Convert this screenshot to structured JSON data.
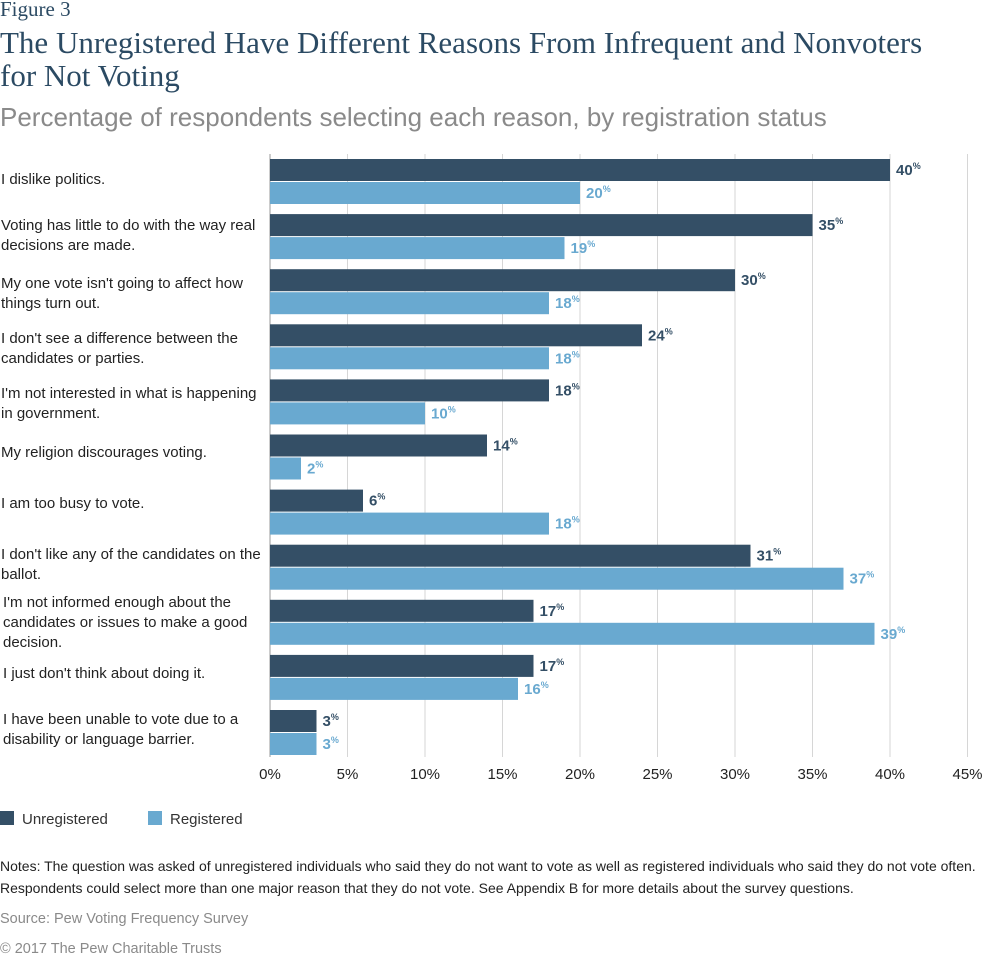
{
  "figure_label": "Figure 3",
  "chart_data": {
    "type": "bar",
    "orientation": "horizontal",
    "title": "The Unregistered Have Different Reasons From Infrequent and Nonvoters for Not Voting",
    "subtitle": "Percentage of respondents selecting each reason, by registration status",
    "categories": [
      "I dislike politics.",
      "Voting has little to do with the way real decisions are made.",
      "My one vote isn't going to affect how things turn out.",
      "I don't see a difference between the candidates or parties.",
      "I'm not interested in what is happening in government.",
      "My religion discourages voting.",
      "I am too busy to vote.",
      "I don't like any of the candidates on the ballot.",
      "I'm not informed enough about the candidates or issues to make a good decision.",
      "I just don't think about doing it.",
      "I have been unable to vote due to a disability or language barrier."
    ],
    "series": [
      {
        "name": "Unregistered",
        "color": "#344f66",
        "values": [
          40,
          35,
          30,
          24,
          18,
          14,
          6,
          31,
          17,
          17,
          3
        ]
      },
      {
        "name": "Registered",
        "color": "#69a9d0",
        "values": [
          20,
          19,
          18,
          18,
          10,
          2,
          18,
          37,
          39,
          16,
          3
        ]
      }
    ],
    "value_suffix": "%",
    "xlim": [
      0,
      45
    ],
    "ticks": [
      0,
      5,
      10,
      15,
      20,
      25,
      30,
      35,
      40,
      45
    ],
    "tick_labels": [
      "0%",
      "5%",
      "10%",
      "15%",
      "20%",
      "25%",
      "30%",
      "35%",
      "40%",
      "45%"
    ],
    "grid": true,
    "legend_position": "bottom-left"
  },
  "notes": "Notes: The question was asked of unregistered individuals who said they do not want to vote as well as registered individuals who said they do not vote often. Respondents could select more than one major reason that they do not vote. See Appendix B for more details about the survey questions.",
  "source": "Source: Pew Voting Frequency Survey",
  "copyright": "© 2017 The Pew Charitable Trusts"
}
